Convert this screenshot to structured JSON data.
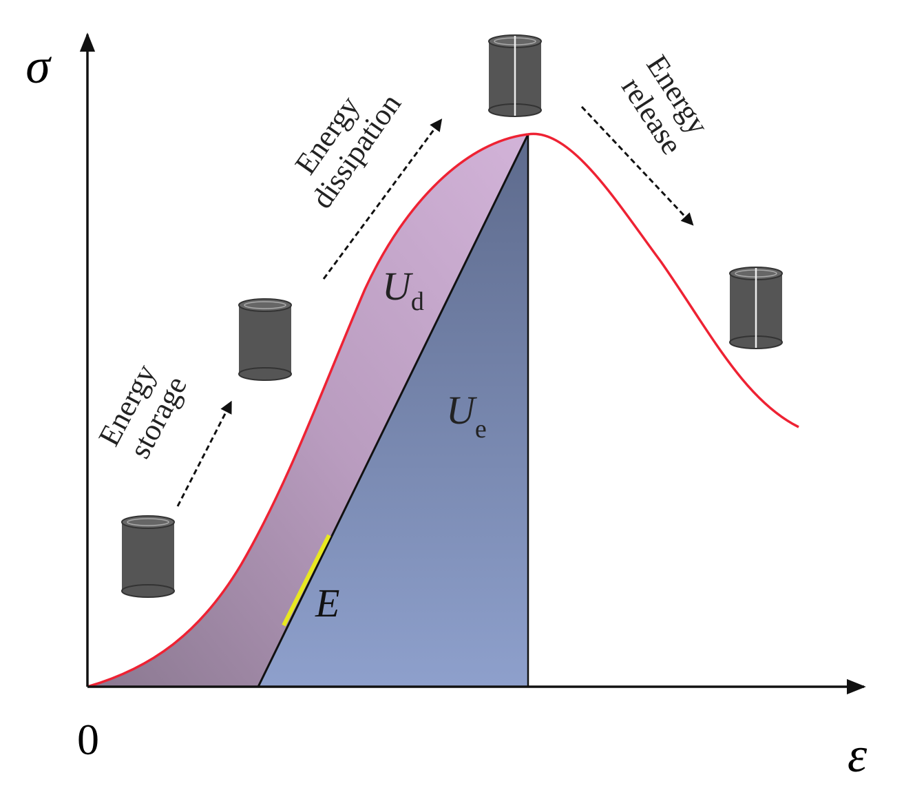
{
  "axes": {
    "y_label": "σ",
    "x_label": "ε",
    "origin": "0"
  },
  "annotations": {
    "storage": [
      "Energy",
      "storage"
    ],
    "dissipation": [
      "Energy",
      "dissipation"
    ],
    "release": [
      "Energy",
      "release"
    ]
  },
  "regions": {
    "dissipated": {
      "symbol": "U",
      "subscript": "d"
    },
    "elastic": {
      "symbol": "U",
      "subscript": "e"
    }
  },
  "slope": "E"
}
